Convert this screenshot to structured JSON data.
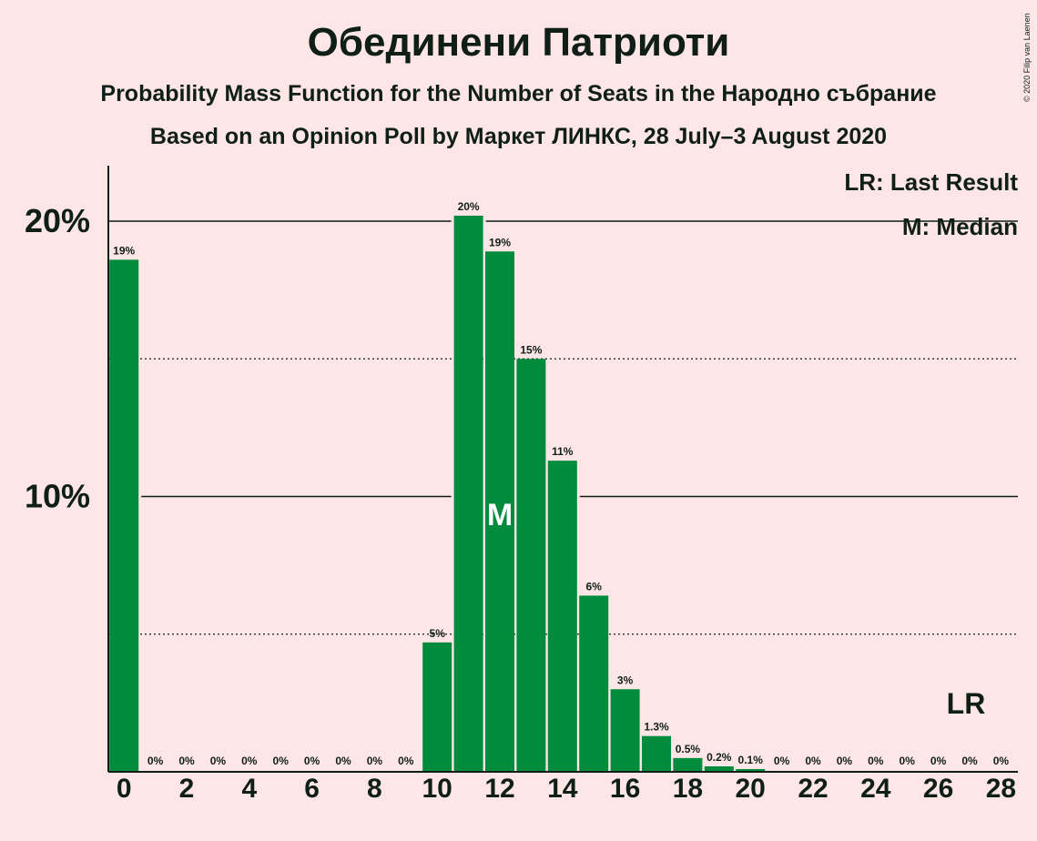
{
  "header": {
    "title": "Обединени Патриоти",
    "subtitle": "Probability Mass Function for the Number of Seats in the Народно събрание",
    "source_line": "Based on an Opinion Poll by Маркет ЛИНКС, 28 July–3 August 2020",
    "copyright": "© 2020 Filip van Laenen"
  },
  "colors": {
    "background": "#fde6e5",
    "bar": "#008c3c",
    "text": "#0f1f17"
  },
  "chart_data": {
    "type": "bar",
    "title": "Обединени Патриоти",
    "subtitle": "Probability Mass Function for the Number of Seats in the Народно събрание",
    "x": [
      0,
      1,
      2,
      3,
      4,
      5,
      6,
      7,
      8,
      9,
      10,
      11,
      12,
      13,
      14,
      15,
      16,
      17,
      18,
      19,
      20,
      21,
      22,
      23,
      24,
      25,
      26,
      27,
      28
    ],
    "values": [
      18.6,
      0,
      0,
      0,
      0,
      0,
      0,
      0,
      0,
      0,
      4.7,
      20.2,
      18.9,
      15.0,
      11.3,
      6.4,
      3.0,
      1.3,
      0.5,
      0.2,
      0.1,
      0,
      0,
      0,
      0,
      0,
      0,
      0,
      0
    ],
    "labels": [
      "19%",
      "0%",
      "0%",
      "0%",
      "0%",
      "0%",
      "0%",
      "0%",
      "0%",
      "0%",
      "5%",
      "20%",
      "19%",
      "15%",
      "11%",
      "6%",
      "3%",
      "1.3%",
      "0.5%",
      "0.2%",
      "0.1%",
      "0%",
      "0%",
      "0%",
      "0%",
      "0%",
      "0%",
      "0%",
      "0%"
    ],
    "x_ticks": [
      "0",
      "2",
      "4",
      "6",
      "8",
      "10",
      "12",
      "14",
      "16",
      "18",
      "20",
      "22",
      "24",
      "26",
      "28"
    ],
    "y_ticks": [
      "10%",
      "20%"
    ],
    "ylim": [
      0,
      22
    ],
    "xlabel": "",
    "ylabel": "",
    "median": 12,
    "median_marker": "M",
    "last_result": 27,
    "last_result_marker": "LR",
    "legend": [
      "LR: Last Result",
      "M: Median"
    ],
    "legend_position": "top-right",
    "grid": "solid at 10% and 20%, dotted at 5% and 15%"
  }
}
